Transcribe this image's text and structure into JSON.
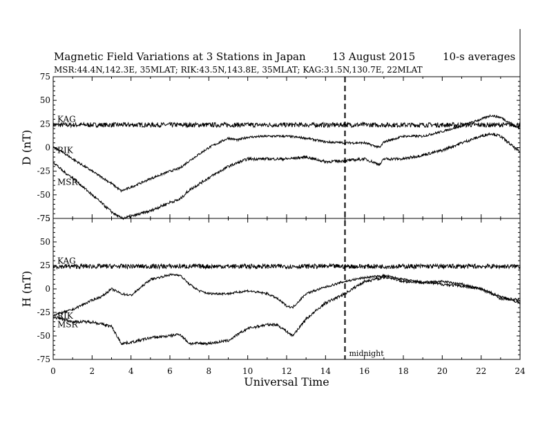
{
  "chart_data": {
    "type": "line",
    "title": "Magnetic Field Variations at 3 Stations in Japan",
    "title_date": "13  August  2015",
    "title_note": "10-s averages",
    "subtitle": "MSR:44.4N,142.3E, 35MLAT;   RIK:43.5N,143.8E, 35MLAT;   KAG:31.5N,130.7E, 22MLAT",
    "xlabel": "Universal Time",
    "xlim": [
      0,
      24
    ],
    "x_ticks": [
      "0",
      "2",
      "4",
      "6",
      "8",
      "10",
      "12",
      "14",
      "16",
      "18",
      "20",
      "22",
      "24"
    ],
    "midnight": {
      "x": 15,
      "label": "midnight"
    },
    "panels": [
      {
        "ylabel": "D (nT)",
        "ylim": [
          -75,
          75
        ],
        "y_ticks": [
          "75",
          "50",
          "25",
          "0",
          "-25",
          "-50",
          "-75"
        ],
        "series": [
          {
            "name": "KAG",
            "x": [
              0,
              24
            ],
            "values": [
              24,
              24
            ],
            "noise": 2.5
          },
          {
            "name": "RIK",
            "x": [
              0,
              0.5,
              1,
              2,
              3,
              3.5,
              4,
              5,
              6,
              6.5,
              7,
              8,
              9,
              9.5,
              10,
              11,
              12,
              13,
              14,
              15,
              16,
              16.8,
              17,
              18,
              19,
              20,
              21,
              22,
              22.5,
              23,
              24
            ],
            "values": [
              0,
              -5,
              -12,
              -25,
              -38,
              -46,
              -42,
              -33,
              -25,
              -22,
              -14,
              0,
              10,
              8,
              11,
              12,
              12,
              10,
              6,
              5,
              5,
              0,
              6,
              12,
              12,
              17,
              23,
              30,
              34,
              32,
              20
            ],
            "noise": 1.2
          },
          {
            "name": "MSR",
            "x": [
              0,
              0.5,
              1,
              2,
              3,
              3.5,
              4,
              5,
              6,
              6.5,
              7,
              8,
              9,
              10,
              11,
              12,
              13,
              14,
              15,
              16,
              16.8,
              17,
              18,
              19,
              20,
              21,
              22,
              22.5,
              23,
              24
            ],
            "values": [
              -15,
              -25,
              -32,
              -50,
              -68,
              -75,
              -73,
              -67,
              -58,
              -55,
              -45,
              -32,
              -20,
              -12,
              -12,
              -12,
              -10,
              -15,
              -14,
              -12,
              -18,
              -12,
              -12,
              -8,
              -3,
              5,
              12,
              15,
              12,
              -5
            ],
            "noise": 1.5
          }
        ]
      },
      {
        "ylabel": "H (nT)",
        "ylim": [
          -75,
          75
        ],
        "y_ticks": [
          "75",
          "50",
          "25",
          "0",
          "-25",
          "-50",
          "-75"
        ],
        "series": [
          {
            "name": "KAG",
            "x": [
              0,
              24
            ],
            "values": [
              24,
              24
            ],
            "noise": 2.5
          },
          {
            "name": "RIK",
            "x": [
              0,
              0.5,
              1,
              2,
              2.5,
              3,
              3.5,
              4,
              5,
              6,
              6.5,
              7,
              7.5,
              8,
              9,
              10,
              11,
              11.5,
              12,
              12.3,
              13,
              14,
              15,
              16,
              17,
              17.3,
              18,
              19,
              20,
              21,
              22,
              23,
              24
            ],
            "values": [
              -28,
              -25,
              -22,
              -12,
              -8,
              0,
              -5,
              -7,
              10,
              15,
              15,
              5,
              -2,
              -5,
              -5,
              -2,
              -5,
              -10,
              -18,
              -20,
              -5,
              2,
              8,
              12,
              14,
              13,
              10,
              7,
              8,
              5,
              0,
              -8,
              -15
            ],
            "noise": 1.2
          },
          {
            "name": "MSR",
            "x": [
              0,
              0.5,
              1,
              2,
              3,
              3.5,
              4,
              5,
              6,
              6.5,
              7,
              8,
              9,
              10,
              11,
              11.5,
              12,
              12.3,
              13,
              14,
              15,
              16,
              17,
              17.3,
              18,
              19,
              20,
              21,
              22,
              23,
              24
            ],
            "values": [
              -30,
              -32,
              -35,
              -35,
              -40,
              -58,
              -57,
              -52,
              -50,
              -48,
              -58,
              -58,
              -55,
              -42,
              -38,
              -38,
              -45,
              -50,
              -32,
              -15,
              -5,
              8,
              12,
              12,
              8,
              7,
              5,
              3,
              0,
              -10,
              -12
            ],
            "noise": 1.5
          }
        ]
      }
    ]
  }
}
